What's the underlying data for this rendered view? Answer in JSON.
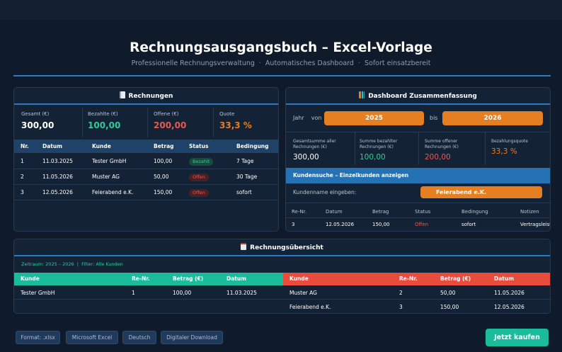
{
  "header": {
    "title": "Rechnungsausgangsbuch – Excel-Vorlage",
    "subtitle_parts": [
      "Professionelle Rechnungsverwaltung",
      "Automatisches Dashboard",
      "Sofort einsatzbereit"
    ],
    "separator": "·"
  },
  "invoices": {
    "title": "Rechnungen",
    "stats": [
      {
        "label": "Gesamt (€)",
        "value": "300,00",
        "color": "#ffffff"
      },
      {
        "label": "Bezahlte (€)",
        "value": "100,00",
        "color": "#2ecc9a"
      },
      {
        "label": "Offene (€)",
        "value": "200,00",
        "color": "#e85a4f"
      },
      {
        "label": "Quote",
        "value": "33,3 %",
        "color": "#e67e22"
      }
    ],
    "columns": [
      "Nr.",
      "Datum",
      "Kunde",
      "Betrag",
      "Status",
      "Bedingung"
    ],
    "rows": [
      {
        "nr": "1",
        "datum": "11.03.2025",
        "kunde": "Tester GmbH",
        "betrag": "100,00",
        "status": "Bezahlt",
        "bedingung": "7 Tage"
      },
      {
        "nr": "2",
        "datum": "11.05.2026",
        "kunde": "Muster AG",
        "betrag": "50,00",
        "status": "Offen",
        "bedingung": "30 Tage"
      },
      {
        "nr": "3",
        "datum": "12.05.2026",
        "kunde": "Feierabend e.K.",
        "betrag": "150,00",
        "status": "Offen",
        "bedingung": "sofort"
      }
    ]
  },
  "dashboard": {
    "title": "Dashboard Zusammenfassung",
    "year_label": "Jahr",
    "from_label": "von",
    "from_value": "2025",
    "to_label": "bis",
    "to_value": "2026",
    "stats": [
      {
        "label": "Gesamtsumme aller Rechnungen (€)",
        "value": "300,00",
        "color": "#ffffff"
      },
      {
        "label": "Summe bezahlter Rechnungen (€)",
        "value": "100,00",
        "color": "#2ecc9a"
      },
      {
        "label": "Summe offener Rechnungen (€)",
        "value": "200,00",
        "color": "#e85a4f"
      },
      {
        "label": "Bezahlungsquote",
        "value": "33,3 %",
        "color": "#e67e22"
      }
    ],
    "search_title": "Kundensuche – Einzelkunden anzeigen",
    "search_label": "Kundenname eingeben:",
    "search_value": "Feierabend e.K.",
    "columns": [
      "Re-Nr.",
      "Datum",
      "Betrag",
      "Status",
      "Bedingung",
      "Notizen"
    ],
    "row": {
      "nr": "3",
      "datum": "12.05.2026",
      "betrag": "150,00",
      "status": "Offen",
      "bedingung": "sofort",
      "notizen": "Vertragsleistu"
    }
  },
  "overview": {
    "title": "Rechnungsübersicht",
    "filter_text": "Zeitraum: 2025 – 2026  |  Filter: Alle Kunden",
    "paid_columns": [
      "Kunde",
      "Re-Nr.",
      "Betrag (€)",
      "Datum"
    ],
    "paid_rows": [
      {
        "kunde": "Tester GmbH",
        "nr": "1",
        "betrag": "100,00",
        "datum": "11.03.2025"
      }
    ],
    "open_columns": [
      "Kunde",
      "Re-Nr.",
      "Betrag (€)",
      "Datum"
    ],
    "open_rows": [
      {
        "kunde": "Muster AG",
        "nr": "2",
        "betrag": "50,00",
        "datum": "11.05.2026"
      },
      {
        "kunde": "Feierabend e.K.",
        "nr": "3",
        "betrag": "150,00",
        "datum": "12.05.2026"
      }
    ]
  },
  "footer": {
    "tags": [
      "Format: .xlsx",
      "Microsoft Excel",
      "Deutsch",
      "Digitaler Download"
    ],
    "buy_label": "Jetzt kaufen"
  },
  "colors": {
    "accent": "#2c78c4",
    "green": "#1abc9c",
    "red": "#e74c3c",
    "orange": "#e67e22"
  },
  "icons": {
    "invoices": "receipt-icon",
    "dashboard": "bar-chart-icon",
    "overview": "clipboard-icon"
  }
}
